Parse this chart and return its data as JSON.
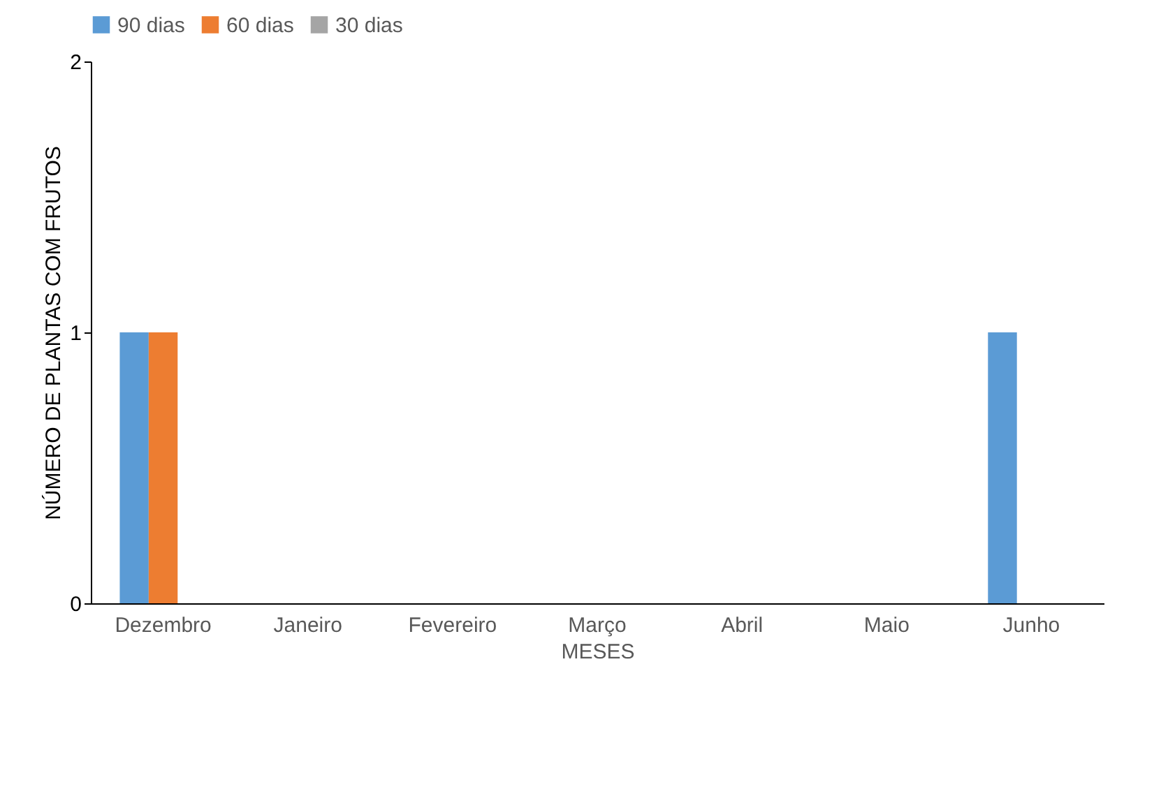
{
  "chart_data": {
    "type": "bar",
    "xlabel": "MESES",
    "ylabel": "NÚMERO DE PLANTAS COM FRUTOS",
    "categories": [
      "Dezembro",
      "Janeiro",
      "Fevereiro",
      "Março",
      "Abril",
      "Maio",
      "Junho"
    ],
    "series": [
      {
        "name": "90 dias",
        "color": "#5b9bd5",
        "values": [
          1,
          0,
          0,
          0,
          0,
          0,
          1
        ]
      },
      {
        "name": "60 dias",
        "color": "#ed7d31",
        "values": [
          1,
          0,
          0,
          0,
          0,
          0,
          0
        ]
      },
      {
        "name": "30 dias",
        "color": "#a5a5a5",
        "values": [
          0,
          0,
          0,
          0,
          0,
          0,
          0
        ]
      }
    ],
    "ylim": [
      0,
      2
    ],
    "yticks": [
      0,
      1,
      2
    ],
    "grid": false,
    "legend": "top"
  }
}
